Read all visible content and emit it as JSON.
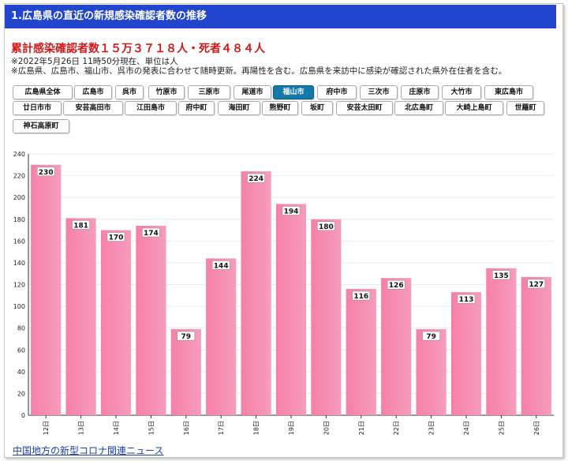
{
  "header": {
    "title": "1.広島県の直近の新規感染確認者数の推移"
  },
  "summary": {
    "total": "累計感染確認者数１５万３７１８人・死者４８４人",
    "note1": "※2022年5月26日 11時50分現在、単位は人",
    "note2": "※広島県、広島市、福山市、呉市の発表に合わせて随時更新。再陽性を含む。広島県を来訪中に感染が確認された県外在住者を含む。"
  },
  "area_buttons": [
    {
      "label": "広島県全体",
      "active": false
    },
    {
      "label": "広島市",
      "active": false
    },
    {
      "label": "呉市",
      "active": false
    },
    {
      "label": "竹原市",
      "active": false
    },
    {
      "label": "三原市",
      "active": false
    },
    {
      "label": "尾道市",
      "active": false
    },
    {
      "label": "福山市",
      "active": true
    },
    {
      "label": "府中市",
      "active": false
    },
    {
      "label": "三次市",
      "active": false
    },
    {
      "label": "庄原市",
      "active": false
    },
    {
      "label": "大竹市",
      "active": false
    },
    {
      "label": "東広島市",
      "active": false
    },
    {
      "label": "廿日市市",
      "active": false
    },
    {
      "label": "安芸高田市",
      "active": false
    },
    {
      "label": "江田島市",
      "active": false
    },
    {
      "label": "府中町",
      "active": false
    },
    {
      "label": "海田町",
      "active": false
    },
    {
      "label": "熊野町",
      "active": false
    },
    {
      "label": "坂町",
      "active": false
    },
    {
      "label": "安芸太田町",
      "active": false
    },
    {
      "label": "北広島町",
      "active": false
    },
    {
      "label": "大崎上島町",
      "active": false
    },
    {
      "label": "世羅町",
      "active": false
    },
    {
      "label": "神石高原町",
      "active": false
    }
  ],
  "chart_data": {
    "type": "bar",
    "categories": [
      "12日",
      "13日",
      "14日",
      "15日",
      "16日",
      "17日",
      "18日",
      "19日",
      "20日",
      "21日",
      "22日",
      "23日",
      "24日",
      "25日",
      "26日"
    ],
    "values": [
      230,
      181,
      170,
      174,
      79,
      144,
      224,
      194,
      180,
      116,
      126,
      79,
      113,
      135,
      127
    ],
    "ylim": [
      0,
      240
    ],
    "yticks": [
      0,
      20,
      40,
      60,
      80,
      100,
      120,
      140,
      160,
      180,
      200,
      220,
      240
    ],
    "grid": true,
    "bar_color": "#f580a8",
    "bar_color_light": "#f79cbd"
  },
  "footer": {
    "link": "中国地方の新型コロナ関連ニュース"
  }
}
